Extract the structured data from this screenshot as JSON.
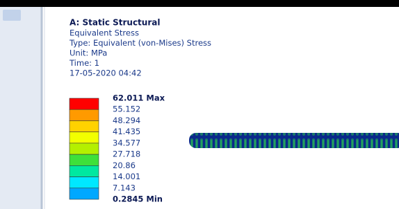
{
  "header": {
    "title": "A: Static Structural",
    "lines": [
      "Equivalent Stress",
      "Type: Equivalent (von-Mises) Stress",
      "Unit: MPa",
      "Time: 1",
      "17-05-2020 04:42"
    ]
  },
  "legend": {
    "labels": [
      "62.011 Max",
      "55.152",
      "48.294",
      "41.435",
      "34.577",
      "27.718",
      "20.86",
      "14.001",
      "7.143",
      "0.2845 Min"
    ],
    "colors": [
      "#ff0000",
      "#ff9a00",
      "#ffd200",
      "#f2ff00",
      "#b4f000",
      "#3ee03a",
      "#00e8a0",
      "#00e8ff",
      "#00a8ff",
      "#0010ff"
    ]
  }
}
